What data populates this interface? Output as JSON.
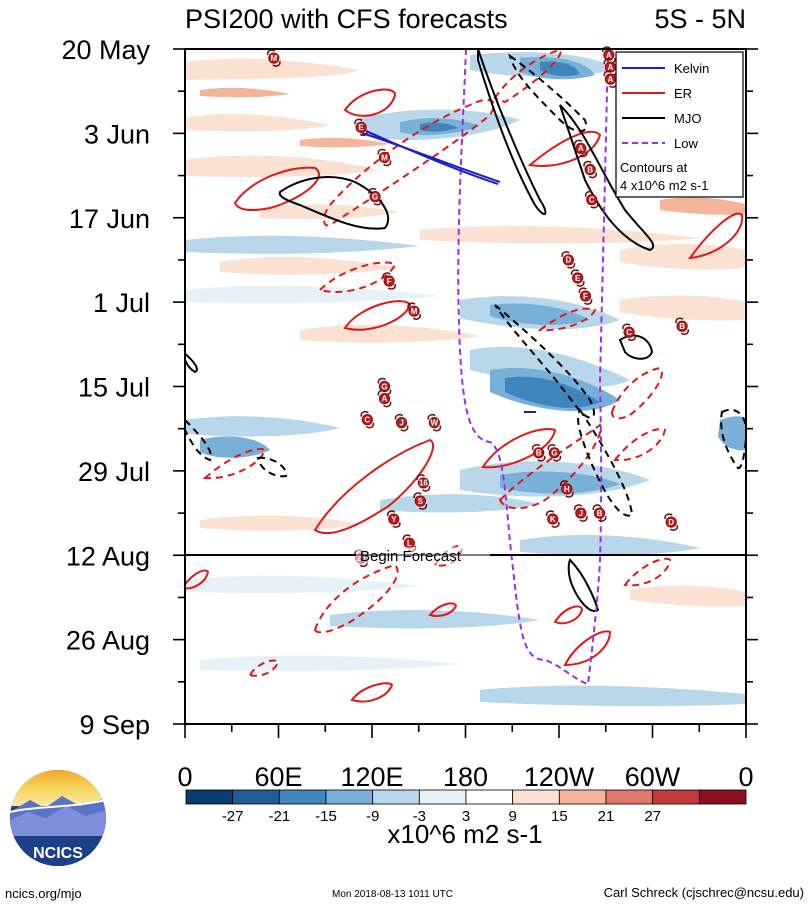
{
  "chart_data": {
    "type": "hovmoller",
    "title": "PSI200 with CFS forecasts",
    "lat_band": "5S - 5N",
    "xlabel": "",
    "ylabel": "",
    "x_ticks": [
      {
        "lon": 0,
        "label": "0"
      },
      {
        "lon": 60,
        "label": "60E"
      },
      {
        "lon": 120,
        "label": "120E"
      },
      {
        "lon": 180,
        "label": "180"
      },
      {
        "lon": 240,
        "label": "120W"
      },
      {
        "lon": 300,
        "label": "60W"
      },
      {
        "lon": 360,
        "label": "0"
      }
    ],
    "y_ticks": [
      {
        "day": 0,
        "label": "20 May"
      },
      {
        "day": 14,
        "label": "3 Jun"
      },
      {
        "day": 28,
        "label": "17 Jun"
      },
      {
        "day": 42,
        "label": "1 Jul"
      },
      {
        "day": 56,
        "label": "15 Jul"
      },
      {
        "day": 70,
        "label": "29 Jul"
      },
      {
        "day": 84,
        "label": "12 Aug"
      },
      {
        "day": 98,
        "label": "26 Aug"
      },
      {
        "day": 112,
        "label": "9 Sep"
      }
    ],
    "xlim": [
      0,
      360
    ],
    "ylim_days": [
      0,
      112
    ],
    "forecast_start_day": 84,
    "forecast_label": "Begin Forecast",
    "colorbar": {
      "levels": [
        "-27",
        "-21",
        "-15",
        "-9",
        "-3",
        "3",
        "9",
        "15",
        "21",
        "27"
      ],
      "colors": [
        "#0b3b73",
        "#1f5d99",
        "#3f86bf",
        "#78b0d8",
        "#b9d7ea",
        "#e7f1f8",
        "#ffffff",
        "#fbe1d2",
        "#f4b59a",
        "#e0796a",
        "#c03a3a",
        "#8a0f1e"
      ],
      "units": "x10^6 m2 s-1"
    },
    "legend": {
      "entries": [
        {
          "name": "Kelvin",
          "color": "#1c1ccc",
          "style": "solid"
        },
        {
          "name": "ER",
          "color": "#e01818",
          "style": "solid"
        },
        {
          "name": "MJO",
          "color": "#000000",
          "style": "solid"
        },
        {
          "name": "Low",
          "color": "#9b30e0",
          "style": "dashed"
        }
      ],
      "note_line1": "Contours at",
      "note_line2": "4 x10^6 m2 s-1"
    },
    "tc_markers": [
      {
        "label": "M",
        "lon": 57,
        "day": 1.5
      },
      {
        "label": "A",
        "lon": 272,
        "day": 1
      },
      {
        "label": "A",
        "lon": 273,
        "day": 3
      },
      {
        "label": "A",
        "lon": 273,
        "day": 5
      },
      {
        "label": "E",
        "lon": 113,
        "day": 13
      },
      {
        "label": "A",
        "lon": 254,
        "day": 16.5
      },
      {
        "label": "M",
        "lon": 128,
        "day": 18
      },
      {
        "label": "B",
        "lon": 260,
        "day": 20
      },
      {
        "label": "G",
        "lon": 122,
        "day": 24.5
      },
      {
        "label": "C",
        "lon": 261,
        "day": 25
      },
      {
        "label": "D",
        "lon": 246,
        "day": 35
      },
      {
        "label": "E",
        "lon": 252,
        "day": 38
      },
      {
        "label": "F",
        "lon": 131,
        "day": 38.5
      },
      {
        "label": "F",
        "lon": 257,
        "day": 41
      },
      {
        "label": "M",
        "lon": 147,
        "day": 43.5
      },
      {
        "label": "C",
        "lon": 285,
        "day": 47
      },
      {
        "label": "B",
        "lon": 319,
        "day": 46
      },
      {
        "label": "G",
        "lon": 128,
        "day": 56
      },
      {
        "label": "A",
        "lon": 128,
        "day": 58
      },
      {
        "label": "C",
        "lon": 117,
        "day": 61.5
      },
      {
        "label": "J",
        "lon": 139,
        "day": 62
      },
      {
        "label": "W",
        "lon": 160,
        "day": 62
      },
      {
        "label": "B",
        "lon": 227,
        "day": 67
      },
      {
        "label": "G",
        "lon": 237,
        "day": 67
      },
      {
        "label": "16",
        "lon": 153,
        "day": 72
      },
      {
        "label": "H",
        "lon": 245,
        "day": 73
      },
      {
        "label": "S",
        "lon": 151,
        "day": 75
      },
      {
        "label": "K",
        "lon": 236,
        "day": 78
      },
      {
        "label": "J",
        "lon": 254,
        "day": 77
      },
      {
        "label": "B",
        "lon": 266,
        "day": 77
      },
      {
        "label": "Y",
        "lon": 134,
        "day": 78
      },
      {
        "label": "D",
        "lon": 312,
        "day": 78.5
      },
      {
        "label": "L",
        "lon": 144,
        "day": 82
      },
      {
        "label": "20",
        "lon": 113,
        "day": 84.5
      }
    ]
  }
}
